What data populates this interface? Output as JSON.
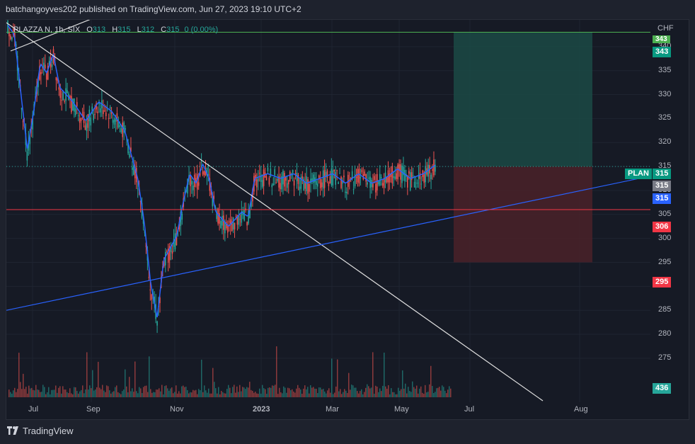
{
  "header": {
    "publish_line": "batchangoyves202 published on TradingView.com, Jun 27, 2023 19:10 UTC+2"
  },
  "legend": {
    "symbol": "PLAZZA N, 1h, SIX",
    "o_label": "O",
    "o": "313",
    "h_label": "H",
    "h": "315",
    "l_label": "L",
    "l": "312",
    "c_label": "C",
    "c": "315",
    "change": "0 (0.00%)"
  },
  "y_axis": {
    "currency": "CHF",
    "ticks": [
      "340",
      "335",
      "330",
      "325",
      "320",
      "315",
      "310",
      "305",
      "300",
      "295",
      "290",
      "285",
      "280",
      "275"
    ]
  },
  "price_tags": {
    "top_partial": "343",
    "target": "343",
    "plan_label": "PLAN",
    "plan_value": "315",
    "last_price": "315",
    "ma_value": "315",
    "stop_line": "306",
    "stop_box": "295",
    "volume": "436"
  },
  "x_axis": {
    "labels": [
      "Jul",
      "Sep",
      "Nov",
      "2023",
      "Mar",
      "May",
      "Jul",
      "Aug"
    ]
  },
  "colors": {
    "up": "#26a69a",
    "down": "#ef5350",
    "ma": "#2962ff",
    "target_line": "#4caf50",
    "stop_line": "#f23645",
    "trendline_white": "#e0e0e0",
    "trendline_blue": "#2962ff",
    "profit_zone": "#1b4a45",
    "loss_zone": "#4a2229"
  },
  "chart_data": {
    "type": "candlestick",
    "symbol": "PLAZZA N",
    "interval": "1h",
    "exchange": "SIX",
    "currency": "CHF",
    "ylim": [
      273,
      345
    ],
    "last": {
      "open": 313,
      "high": 315,
      "low": 312,
      "close": 315
    },
    "levels": {
      "target": 343,
      "entry": 315,
      "stop": 306,
      "stop_zone_bottom": 295
    },
    "trendlines": [
      {
        "name": "resistance",
        "from": {
          "t": 0,
          "price": 346
        },
        "to": {
          "t": 0.81,
          "price": 273
        }
      },
      {
        "name": "support",
        "from": {
          "t": 0,
          "price": 285
        },
        "to": {
          "t": 1,
          "price": 313
        }
      }
    ],
    "price_path": [
      [
        0.0,
        344
      ],
      [
        0.01,
        342
      ],
      [
        0.02,
        330
      ],
      [
        0.03,
        318
      ],
      [
        0.04,
        326
      ],
      [
        0.05,
        336
      ],
      [
        0.06,
        334
      ],
      [
        0.07,
        338
      ],
      [
        0.08,
        331
      ],
      [
        0.1,
        328
      ],
      [
        0.12,
        324
      ],
      [
        0.14,
        328
      ],
      [
        0.16,
        326
      ],
      [
        0.18,
        322
      ],
      [
        0.2,
        312
      ],
      [
        0.21,
        303
      ],
      [
        0.22,
        290
      ],
      [
        0.23,
        283
      ],
      [
        0.24,
        295
      ],
      [
        0.26,
        300
      ],
      [
        0.27,
        307
      ],
      [
        0.28,
        313
      ],
      [
        0.29,
        311
      ],
      [
        0.3,
        315
      ],
      [
        0.31,
        312
      ],
      [
        0.32,
        305
      ],
      [
        0.34,
        302
      ],
      [
        0.36,
        305
      ],
      [
        0.37,
        304
      ],
      [
        0.38,
        312
      ],
      [
        0.4,
        313
      ],
      [
        0.42,
        312
      ],
      [
        0.44,
        313
      ],
      [
        0.46,
        311
      ],
      [
        0.48,
        312
      ],
      [
        0.5,
        313
      ],
      [
        0.52,
        311
      ],
      [
        0.54,
        313
      ],
      [
        0.56,
        311
      ],
      [
        0.58,
        312
      ],
      [
        0.6,
        314
      ],
      [
        0.62,
        312
      ],
      [
        0.64,
        313
      ],
      [
        0.66,
        315
      ]
    ]
  }
}
